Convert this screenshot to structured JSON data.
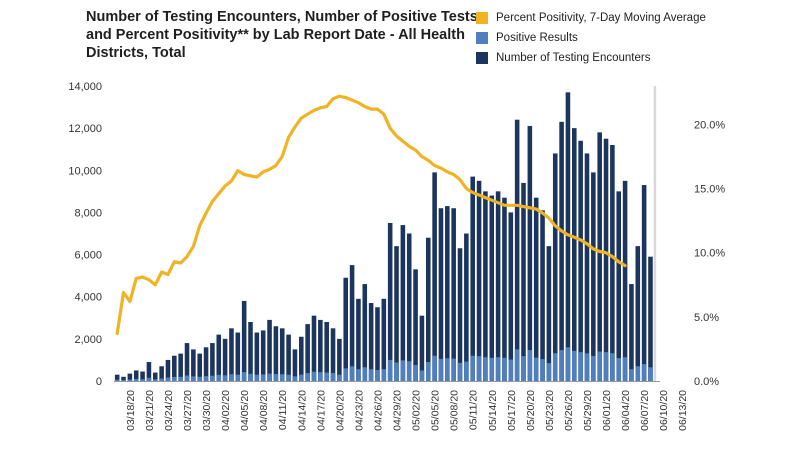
{
  "colors": {
    "encounters": "#1c355e",
    "positive": "#4f7fbf",
    "positivity": "#f0b323",
    "shade": "#d9d9d9"
  },
  "chart_data": {
    "type": "bar",
    "title": "Number of Testing Encounters, Number of Positive Tests, and Percent Positivity** by Lab Report Date - All Health Districts, Total",
    "legend": [
      "Percent Positivity, 7-Day Moving Average",
      "Positive Results",
      "Number of Testing Encounters"
    ],
    "legend_position": "top-right",
    "start_date": "03/16/20",
    "x_tick_labels": [
      "03/18/20",
      "03/21/20",
      "03/24/20",
      "03/27/20",
      "03/30/20",
      "04/02/20",
      "04/05/20",
      "04/08/20",
      "04/11/20",
      "04/14/20",
      "04/17/20",
      "04/20/20",
      "04/23/20",
      "04/26/20",
      "04/29/20",
      "05/02/20",
      "05/05/20",
      "05/08/20",
      "05/11/20",
      "05/14/20",
      "05/17/20",
      "05/20/20",
      "05/23/20",
      "05/26/20",
      "05/29/20",
      "06/01/20",
      "06/04/20",
      "06/07/20",
      "06/10/20",
      "06/13/20"
    ],
    "left_ylim": [
      0,
      14000
    ],
    "left_ticks": [
      "0",
      "2,000",
      "4,000",
      "6,000",
      "8,000",
      "10,000",
      "12,000",
      "14,000"
    ],
    "right_ylim": [
      0,
      0.23
    ],
    "right_ticks": [
      "0.0%",
      "5.0%",
      "10.0%",
      "15.0%",
      "20.0%"
    ],
    "shaded_from": "06/09/20",
    "encounters": [
      300,
      200,
      350,
      500,
      450,
      900,
      400,
      700,
      1000,
      1200,
      1300,
      1800,
      1500,
      1300,
      1600,
      1800,
      2200,
      2000,
      2500,
      2300,
      3800,
      2800,
      2300,
      2400,
      2900,
      2600,
      2500,
      2200,
      1500,
      2100,
      2700,
      3100,
      2900,
      2800,
      2500,
      2000,
      4900,
      5500,
      3900,
      4600,
      3700,
      3500,
      3900,
      7500,
      6400,
      7400,
      7000,
      5300,
      3100,
      6800,
      9900,
      8200,
      8300,
      8200,
      6300,
      7000,
      9700,
      9500,
      9000,
      8800,
      9000,
      8700,
      8000,
      12400,
      9400,
      12100,
      8700,
      8100,
      6400,
      10800,
      12300,
      13700,
      12000,
      11400,
      10800,
      9900,
      11800,
      11500,
      11200,
      9000,
      9500,
      4600,
      6400,
      9300,
      5900
    ],
    "positives": [
      60,
      50,
      70,
      100,
      90,
      150,
      80,
      120,
      160,
      190,
      200,
      260,
      220,
      200,
      230,
      250,
      290,
      270,
      320,
      300,
      420,
      340,
      300,
      310,
      350,
      330,
      320,
      300,
      220,
      300,
      380,
      440,
      420,
      400,
      380,
      300,
      600,
      700,
      560,
      650,
      560,
      520,
      560,
      1000,
      880,
      980,
      940,
      760,
      500,
      900,
      1200,
      1050,
      1080,
      1060,
      860,
      920,
      1200,
      1180,
      1130,
      1100,
      1130,
      1100,
      1020,
      1500,
      1180,
      1470,
      1110,
      1040,
      850,
      1320,
      1470,
      1600,
      1430,
      1370,
      1310,
      1190,
      1400,
      1370,
      1320,
      1090,
      1130,
      560,
      700,
      800,
      650
    ],
    "positivity": [
      0.037,
      0.069,
      0.062,
      0.08,
      0.081,
      0.079,
      0.075,
      0.085,
      0.083,
      0.093,
      0.092,
      0.097,
      0.105,
      0.121,
      0.131,
      0.14,
      0.146,
      0.152,
      0.156,
      0.164,
      0.161,
      0.16,
      0.159,
      0.163,
      0.165,
      0.168,
      0.175,
      0.19,
      0.198,
      0.205,
      0.208,
      0.211,
      0.213,
      0.214,
      0.22,
      0.222,
      0.221,
      0.219,
      0.217,
      0.214,
      0.212,
      0.212,
      0.208,
      0.197,
      0.191,
      0.187,
      0.183,
      0.18,
      0.175,
      0.172,
      0.168,
      0.166,
      0.163,
      0.161,
      0.157,
      0.15,
      0.147,
      0.145,
      0.143,
      0.141,
      0.139,
      0.137,
      0.137,
      0.137,
      0.136,
      0.135,
      0.134,
      0.131,
      0.127,
      0.121,
      0.117,
      0.114,
      0.112,
      0.11,
      0.107,
      0.103,
      0.101,
      0.1,
      0.097,
      0.093,
      0.09
    ]
  }
}
